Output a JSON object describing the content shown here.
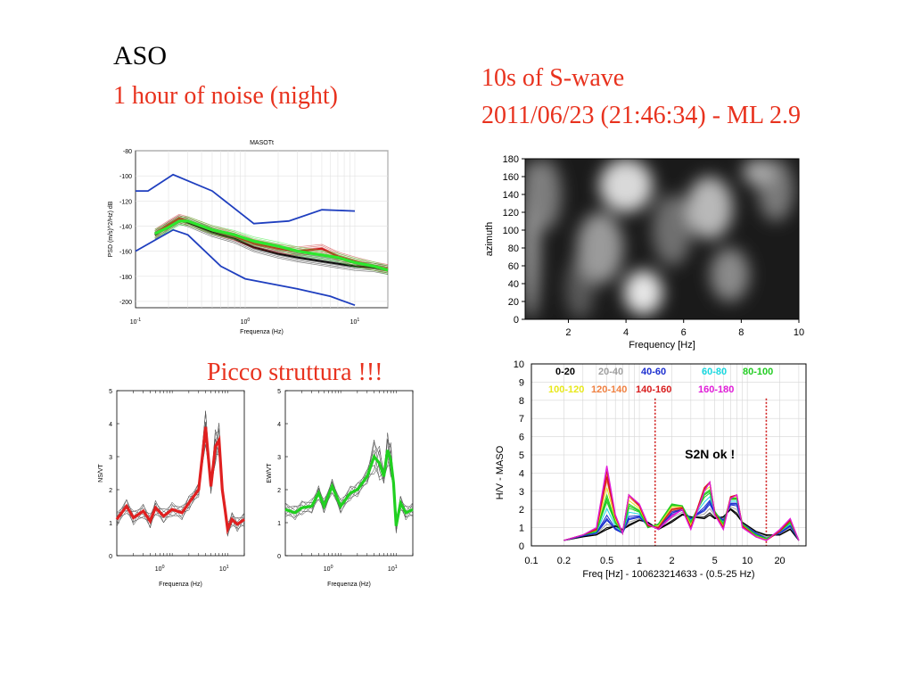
{
  "headings": {
    "station": "ASO",
    "noise": "1 hour of noise (night)",
    "swave": "10s of S-wave",
    "event": "2011/06/23 (21:46:34) - ML 2.9",
    "peak": "Picco struttura !!!"
  },
  "chart_data": [
    {
      "type": "line",
      "title": "MASOTt",
      "xlabel": "Frequenza (Hz)",
      "ylabel": "PSD (m/s)^2/Hz) dB",
      "xscale": "log",
      "xlim": [
        0.1,
        20
      ],
      "ylim": [
        -205,
        -80
      ],
      "yticks": [
        -80,
        -100,
        -120,
        -140,
        -160,
        -180,
        -200
      ],
      "xticks": [
        0.1,
        1,
        10
      ],
      "xtick_labels": [
        {
          "base": "10",
          "exp": "-1"
        },
        {
          "base": "10",
          "exp": "0"
        },
        {
          "base": "10",
          "exp": "1"
        }
      ],
      "grid": true,
      "series": [
        {
          "role": "high-noise-model",
          "color": "#1f3fbf",
          "x": [
            0.1,
            0.13,
            0.22,
            0.5,
            1.2,
            2.5,
            5,
            10
          ],
          "y": [
            -112,
            -112,
            -99,
            -112,
            -138,
            -136,
            -127,
            -128
          ]
        },
        {
          "role": "low-noise-model",
          "color": "#1f3fbf",
          "x": [
            0.1,
            0.22,
            0.3,
            0.6,
            1,
            3,
            6,
            10
          ],
          "y": [
            -160,
            -143,
            -147,
            -172,
            -182,
            -190,
            -196,
            -203
          ]
        },
        {
          "role": "spectra",
          "color": "#111111",
          "x": [
            0.15,
            0.2,
            0.25,
            0.3,
            0.5,
            0.8,
            1.2,
            2,
            3,
            5,
            7,
            10,
            15,
            20
          ],
          "y": [
            -147,
            -140,
            -135,
            -137,
            -145,
            -150,
            -157,
            -162,
            -165,
            -168,
            -170,
            -172,
            -173,
            -175
          ]
        },
        {
          "role": "spectra",
          "color": "#cc1f1f",
          "x": [
            0.15,
            0.2,
            0.25,
            0.3,
            0.5,
            0.8,
            1.2,
            2,
            3,
            5,
            7,
            10,
            15,
            20
          ],
          "y": [
            -146,
            -139,
            -134,
            -136,
            -143,
            -148,
            -154,
            -158,
            -160,
            -158,
            -164,
            -168,
            -172,
            -174
          ]
        },
        {
          "role": "spectra",
          "color": "#2ee62e",
          "x": [
            0.15,
            0.2,
            0.25,
            0.3,
            0.5,
            0.8,
            1.2,
            2,
            3,
            5,
            7,
            10,
            15,
            20
          ],
          "y": [
            -146,
            -141,
            -136,
            -136,
            -143,
            -147,
            -152,
            -156,
            -160,
            -163,
            -165,
            -169,
            -172,
            -175
          ]
        }
      ]
    },
    {
      "type": "heatmap",
      "colormap": "grayscale",
      "xlabel": "Frequency [Hz]",
      "ylabel": "azimuth",
      "xlim": [
        0.5,
        10
      ],
      "ylim": [
        0,
        180
      ],
      "xticks": [
        2,
        4,
        6,
        8,
        10
      ],
      "yticks": [
        0,
        20,
        40,
        60,
        80,
        100,
        120,
        140,
        160,
        180
      ],
      "bright_features": [
        {
          "freq": 4.6,
          "azimuth": 24,
          "level": "high"
        },
        {
          "freq": 4.2,
          "azimuth": 160,
          "level": "high"
        },
        {
          "freq": 6.9,
          "azimuth": 120,
          "level": "medium"
        },
        {
          "freq": 0.9,
          "azimuth": 150,
          "level": "medium"
        },
        {
          "freq": 3.2,
          "azimuth": 70,
          "level": "medium"
        }
      ]
    },
    {
      "type": "line",
      "xlabel": "Frequenza (Hz)",
      "ylabel": "NS/VT",
      "xscale": "log",
      "xlim": [
        0.1,
        20
      ],
      "ylim": [
        0,
        5
      ],
      "yticks": [
        0,
        1,
        2,
        3,
        4,
        5
      ],
      "xtick_labels": [
        {
          "base": "10",
          "exp": "0"
        },
        {
          "base": "10",
          "exp": "1"
        }
      ],
      "series": [
        {
          "role": "mean",
          "color": "#e02020",
          "x": [
            0.1,
            0.15,
            0.2,
            0.3,
            0.4,
            0.5,
            0.7,
            1,
            1.5,
            2,
            3,
            4,
            5,
            6,
            7,
            8,
            9,
            10,
            12,
            15,
            20
          ],
          "y": [
            1.1,
            1.5,
            1.15,
            1.35,
            1.05,
            1.45,
            1.2,
            1.4,
            1.3,
            1.6,
            2.0,
            3.9,
            2.1,
            3.3,
            3.5,
            2.0,
            1.4,
            0.8,
            1.1,
            0.95,
            1.1
          ]
        }
      ]
    },
    {
      "type": "line",
      "xlabel": "Frequenza (Hz)",
      "ylabel": "EW/VT",
      "xscale": "log",
      "xlim": [
        0.1,
        20
      ],
      "ylim": [
        0,
        5
      ],
      "yticks": [
        0,
        1,
        2,
        3,
        4,
        5
      ],
      "xtick_labels": [
        {
          "base": "10",
          "exp": "0"
        },
        {
          "base": "10",
          "exp": "1"
        }
      ],
      "series": [
        {
          "role": "mean",
          "color": "#20d020",
          "x": [
            0.1,
            0.15,
            0.2,
            0.3,
            0.4,
            0.5,
            0.7,
            1,
            1.5,
            2,
            3,
            4,
            5,
            6,
            7,
            8,
            9,
            10,
            12,
            15,
            20
          ],
          "y": [
            1.4,
            1.3,
            1.45,
            1.5,
            1.9,
            1.5,
            2.1,
            1.5,
            1.9,
            2.0,
            2.4,
            3.0,
            2.8,
            2.4,
            3.2,
            2.9,
            2.2,
            0.9,
            1.6,
            1.3,
            1.4
          ]
        }
      ]
    },
    {
      "type": "line",
      "xlabel": "Freq [Hz] - 100623214633 - (0.5-25 Hz)",
      "ylabel": "H/V - MASO",
      "xscale": "log",
      "xlim": [
        0.1,
        35
      ],
      "ylim": [
        0,
        10
      ],
      "yticks": [
        0,
        1,
        2,
        3,
        4,
        5,
        6,
        7,
        8,
        9,
        10
      ],
      "xticks": [
        0.1,
        0.2,
        0.5,
        1,
        2,
        5,
        10,
        20
      ],
      "xtick_labels": [
        "0.1",
        "0.2",
        "0.5",
        "1",
        "2",
        "5",
        "10",
        "20"
      ],
      "grid": true,
      "annotation": "S2N ok !",
      "window_lines": [
        1.4,
        15
      ],
      "legend": [
        {
          "label": "0-20",
          "color": "#000000"
        },
        {
          "label": "20-40",
          "color": "#a0a0a0"
        },
        {
          "label": "40-60",
          "color": "#1c2fd0"
        },
        {
          "label": "60-80",
          "color": "#18d8e0"
        },
        {
          "label": "80-100",
          "color": "#22cc22"
        },
        {
          "label": "100-120",
          "color": "#e8e81c"
        },
        {
          "label": "120-140",
          "color": "#f08040"
        },
        {
          "label": "140-160",
          "color": "#d81c1c"
        },
        {
          "label": "160-180",
          "color": "#e01cd8"
        }
      ],
      "series": [
        {
          "name": "0-20",
          "color": "#000000",
          "x": [
            0.2,
            0.3,
            0.4,
            0.5,
            0.6,
            0.7,
            0.8,
            1,
            1.2,
            1.5,
            2,
            2.5,
            3,
            4,
            4.5,
            5,
            6,
            7,
            8,
            9,
            12,
            15,
            20,
            25,
            30
          ],
          "y": [
            0.3,
            0.5,
            0.6,
            0.9,
            1.1,
            0.9,
            1.1,
            1.4,
            1.3,
            0.9,
            1.3,
            1.7,
            1.6,
            1.5,
            1.7,
            1.5,
            1.6,
            2.0,
            1.7,
            1.3,
            0.8,
            0.6,
            0.6,
            0.9,
            0.3
          ]
        },
        {
          "name": "40-60",
          "color": "#1c2fd0",
          "x": [
            0.2,
            0.3,
            0.4,
            0.5,
            0.6,
            0.7,
            0.8,
            1,
            1.2,
            1.5,
            2,
            2.5,
            3,
            4,
            4.5,
            5,
            6,
            7,
            8,
            9,
            12,
            15,
            20,
            25,
            30
          ],
          "y": [
            0.3,
            0.55,
            0.7,
            1.5,
            0.9,
            0.7,
            1.5,
            1.6,
            1.1,
            1.0,
            1.8,
            2.0,
            1.5,
            2.0,
            2.4,
            1.8,
            1.4,
            2.3,
            2.3,
            1.2,
            0.7,
            0.4,
            0.7,
            1.1,
            0.3
          ]
        },
        {
          "name": "80-100",
          "color": "#22cc22",
          "x": [
            0.2,
            0.3,
            0.4,
            0.5,
            0.6,
            0.7,
            0.8,
            1,
            1.2,
            1.5,
            2,
            2.5,
            3,
            4,
            4.5,
            5,
            6,
            7,
            8,
            9,
            12,
            15,
            20,
            25,
            30
          ],
          "y": [
            0.3,
            0.6,
            0.8,
            2.6,
            1.3,
            0.7,
            2.2,
            1.9,
            1.0,
            1.2,
            2.3,
            2.2,
            1.3,
            2.8,
            3.0,
            1.9,
            1.2,
            2.6,
            2.6,
            1.2,
            0.6,
            0.4,
            0.8,
            1.3,
            0.3
          ]
        },
        {
          "name": "140-160",
          "color": "#d81c1c",
          "x": [
            0.2,
            0.3,
            0.4,
            0.5,
            0.6,
            0.7,
            0.8,
            1,
            1.2,
            1.5,
            2,
            2.5,
            3,
            4,
            4.5,
            5,
            6,
            7,
            8,
            9,
            12,
            15,
            20,
            25,
            30
          ],
          "y": [
            0.3,
            0.6,
            0.9,
            3.8,
            1.6,
            0.7,
            2.8,
            2.2,
            1.1,
            1.0,
            2.0,
            2.1,
            1.0,
            3.2,
            3.5,
            1.8,
            1.0,
            2.7,
            2.8,
            1.1,
            0.5,
            0.3,
            0.8,
            1.4,
            0.3
          ]
        },
        {
          "name": "160-180",
          "color": "#e01cd8",
          "x": [
            0.2,
            0.3,
            0.4,
            0.5,
            0.6,
            0.7,
            0.8,
            1,
            1.2,
            1.5,
            2,
            2.5,
            3,
            4,
            4.5,
            5,
            6,
            7,
            8,
            9,
            12,
            15,
            20,
            25,
            30
          ],
          "y": [
            0.3,
            0.6,
            1.0,
            4.4,
            1.7,
            0.7,
            2.8,
            2.3,
            1.2,
            0.9,
            1.6,
            2.0,
            0.9,
            3.0,
            3.5,
            1.7,
            0.9,
            2.6,
            2.8,
            1.0,
            0.5,
            0.3,
            0.9,
            1.5,
            0.3
          ]
        }
      ]
    }
  ]
}
